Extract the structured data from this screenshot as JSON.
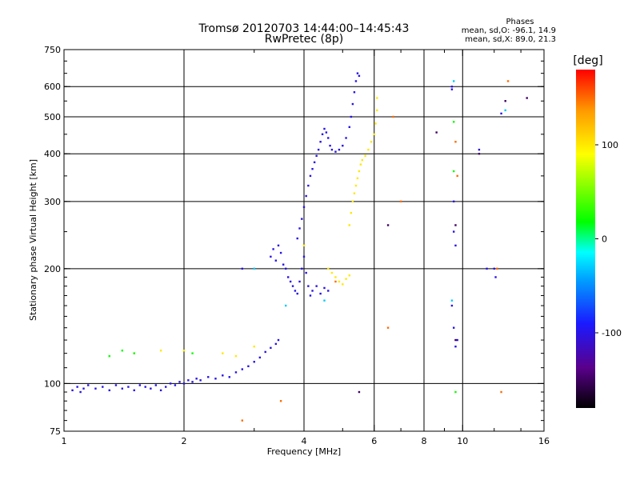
{
  "chart_data": {
    "type": "scatter",
    "title": "Tromsø 20120703 14:44:00–14:45:43",
    "subtitle": "RwPretec (8p)",
    "xlabel": "Frequency [MHz]",
    "ylabel": "Stationary phase Virtual Height [km]",
    "x_scale": "log",
    "y_scale": "log",
    "xlim": [
      1,
      16
    ],
    "ylim": [
      75,
      750
    ],
    "x_ticks": [
      1,
      2,
      4,
      6,
      8,
      10,
      16
    ],
    "x_tick_labels": [
      "1",
      "2",
      "4",
      "6",
      "8",
      "10",
      "16"
    ],
    "x_minor_ticks": [
      3,
      5,
      7,
      9,
      12,
      14
    ],
    "y_ticks": [
      75,
      100,
      200,
      300,
      400,
      500,
      600,
      750
    ],
    "y_tick_labels": [
      "75",
      "100",
      "200",
      "300",
      "400",
      "500",
      "600",
      "750"
    ],
    "x_grid": [
      2,
      4,
      6,
      8,
      10
    ],
    "y_grid": [
      100,
      200,
      300,
      400,
      500,
      600
    ],
    "grid": true,
    "legend": {
      "title": "Phases",
      "lines": [
        "mean, sd,O: -96.1, 14.9",
        "mean, sd,X: 89.0, 21.3"
      ],
      "placement": "top-right"
    },
    "colorbar": {
      "title": "[deg]",
      "range": [
        -180,
        180
      ],
      "ticks": [
        100,
        0,
        -100
      ],
      "tick_labels": [
        "100",
        "0",
        "-100"
      ],
      "colormap": "rainbow (black → purple → blue → cyan → green → yellow → orange → red)"
    },
    "series": [
      {
        "phase": -100,
        "points": [
          [
            1.05,
            96
          ],
          [
            1.08,
            98
          ],
          [
            1.1,
            95
          ],
          [
            1.12,
            97
          ],
          [
            1.15,
            99
          ],
          [
            1.2,
            97
          ],
          [
            1.25,
            98
          ],
          [
            1.3,
            96
          ],
          [
            1.35,
            99
          ],
          [
            1.4,
            97
          ],
          [
            1.45,
            98
          ],
          [
            1.5,
            96
          ],
          [
            1.55,
            99
          ],
          [
            1.6,
            98
          ],
          [
            1.65,
            97
          ],
          [
            1.7,
            99
          ],
          [
            1.75,
            96
          ],
          [
            1.8,
            98
          ],
          [
            1.85,
            100
          ],
          [
            1.9,
            99
          ],
          [
            1.95,
            101
          ],
          [
            2.0,
            100
          ],
          [
            2.05,
            102
          ],
          [
            2.1,
            101
          ],
          [
            2.15,
            103
          ],
          [
            2.2,
            102
          ],
          [
            2.3,
            104
          ],
          [
            2.4,
            103
          ],
          [
            2.5,
            105
          ],
          [
            2.6,
            104
          ],
          [
            2.7,
            107
          ],
          [
            2.8,
            109
          ],
          [
            2.9,
            111
          ],
          [
            3.0,
            114
          ],
          [
            3.1,
            117
          ],
          [
            3.2,
            121
          ],
          [
            3.3,
            124
          ],
          [
            3.4,
            127
          ],
          [
            3.45,
            130
          ],
          [
            3.3,
            215
          ],
          [
            3.35,
            225
          ],
          [
            3.4,
            210
          ],
          [
            3.45,
            230
          ],
          [
            3.5,
            220
          ],
          [
            3.55,
            205
          ],
          [
            3.6,
            200
          ],
          [
            3.65,
            190
          ],
          [
            3.7,
            185
          ],
          [
            3.75,
            180
          ],
          [
            3.8,
            175
          ],
          [
            3.85,
            172
          ],
          [
            3.9,
            185
          ],
          [
            3.95,
            200
          ],
          [
            4.0,
            215
          ],
          [
            4.05,
            195
          ],
          [
            4.1,
            180
          ],
          [
            4.15,
            170
          ],
          [
            4.2,
            175
          ],
          [
            4.3,
            180
          ],
          [
            4.4,
            172
          ],
          [
            4.5,
            178
          ],
          [
            4.6,
            175
          ],
          [
            3.85,
            240
          ],
          [
            3.9,
            255
          ],
          [
            3.95,
            270
          ],
          [
            4.0,
            290
          ],
          [
            4.05,
            310
          ],
          [
            4.1,
            330
          ],
          [
            4.15,
            350
          ],
          [
            4.2,
            365
          ],
          [
            4.25,
            380
          ],
          [
            4.3,
            395
          ],
          [
            4.35,
            410
          ],
          [
            4.4,
            430
          ],
          [
            4.45,
            450
          ],
          [
            4.5,
            465
          ],
          [
            4.55,
            455
          ],
          [
            4.6,
            440
          ],
          [
            4.65,
            420
          ],
          [
            4.7,
            410
          ],
          [
            4.8,
            405
          ],
          [
            4.9,
            410
          ],
          [
            5.0,
            420
          ],
          [
            5.1,
            440
          ],
          [
            5.2,
            470
          ],
          [
            5.25,
            500
          ],
          [
            5.3,
            540
          ],
          [
            5.35,
            580
          ],
          [
            5.4,
            620
          ],
          [
            5.45,
            650
          ],
          [
            5.5,
            640
          ],
          [
            2.8,
            200
          ],
          [
            9.4,
            600
          ],
          [
            9.4,
            590
          ],
          [
            9.5,
            300
          ],
          [
            9.5,
            250
          ],
          [
            9.6,
            230
          ],
          [
            9.4,
            160
          ],
          [
            9.5,
            140
          ],
          [
            9.6,
            125
          ],
          [
            11.5,
            200
          ],
          [
            12.0,
            200
          ],
          [
            12.1,
            190
          ],
          [
            12.5,
            510
          ],
          [
            11.0,
            410
          ],
          [
            9.7,
            130
          ]
        ]
      },
      {
        "phase": 100,
        "points": [
          [
            5.2,
            260
          ],
          [
            5.25,
            280
          ],
          [
            5.3,
            300
          ],
          [
            5.35,
            315
          ],
          [
            5.4,
            330
          ],
          [
            5.45,
            345
          ],
          [
            5.5,
            360
          ],
          [
            5.55,
            375
          ],
          [
            5.6,
            385
          ],
          [
            5.7,
            395
          ],
          [
            5.8,
            410
          ],
          [
            5.9,
            430
          ],
          [
            6.0,
            450
          ],
          [
            6.05,
            480
          ],
          [
            6.1,
            520
          ],
          [
            6.1,
            560
          ],
          [
            4.6,
            200
          ],
          [
            4.7,
            195
          ],
          [
            4.8,
            190
          ],
          [
            4.9,
            185
          ],
          [
            5.0,
            182
          ],
          [
            5.1,
            188
          ],
          [
            5.2,
            192
          ],
          [
            1.5,
            120
          ],
          [
            1.75,
            122
          ],
          [
            2.0,
            122
          ],
          [
            2.5,
            120
          ],
          [
            2.7,
            118
          ],
          [
            3.0,
            125
          ],
          [
            4.0,
            230
          ]
        ]
      },
      {
        "phase": 20,
        "points": [
          [
            1.3,
            118
          ],
          [
            1.4,
            122
          ],
          [
            1.5,
            120
          ],
          [
            2.1,
            120
          ],
          [
            9.6,
            95
          ],
          [
            9.5,
            485
          ],
          [
            9.5,
            360
          ]
        ]
      },
      {
        "phase": 150,
        "points": [
          [
            4.8,
            185
          ],
          [
            6.5,
            140
          ],
          [
            6.7,
            500
          ],
          [
            12.2,
            200
          ],
          [
            12.5,
            95
          ],
          [
            13.0,
            620
          ],
          [
            3.5,
            90
          ],
          [
            2.8,
            80
          ],
          [
            7.0,
            300
          ],
          [
            9.7,
            350
          ],
          [
            9.6,
            430
          ]
        ]
      },
      {
        "phase": -150,
        "points": [
          [
            5.5,
            95
          ],
          [
            6.5,
            260
          ],
          [
            8.6,
            455
          ],
          [
            9.6,
            260
          ],
          [
            9.6,
            130
          ],
          [
            11.0,
            400
          ],
          [
            14.5,
            560
          ],
          [
            12.8,
            550
          ]
        ]
      },
      {
        "phase": -30,
        "points": [
          [
            3.0,
            200
          ],
          [
            3.6,
            160
          ],
          [
            4.5,
            165
          ],
          [
            9.4,
            165
          ],
          [
            9.5,
            620
          ],
          [
            12.8,
            520
          ]
        ]
      }
    ]
  }
}
